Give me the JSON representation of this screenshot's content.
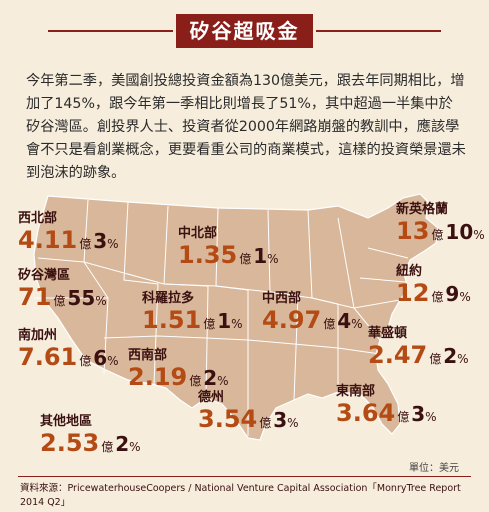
{
  "title": "矽谷超吸金",
  "intro": "今年第二季，美國創投總投資金額為130億美元，跟去年同期相比，增加了145%，跟今年第一季相比則增長了51%，其中超過一半集中於矽谷灣區。創投界人士、投資者從2000年網路崩盤的教訓中，應該學會不只是看創業概念，更要看重公司的商業模式，這樣的投資榮景還未到泡沫的跡象。",
  "unit_word": "億",
  "pct_sign": "%",
  "regions": [
    {
      "name": "西北部",
      "value": "4.11",
      "pct": "3"
    },
    {
      "name": "中北部",
      "value": "1.35",
      "pct": "1"
    },
    {
      "name": "新英格蘭",
      "value": "13",
      "pct": "10"
    },
    {
      "name": "矽谷灣區",
      "value": "71",
      "pct": "55"
    },
    {
      "name": "科羅拉多",
      "value": "1.51",
      "pct": "1"
    },
    {
      "name": "中西部",
      "value": "4.97",
      "pct": "4"
    },
    {
      "name": "紐約",
      "value": "12",
      "pct": "9"
    },
    {
      "name": "南加州",
      "value": "7.61",
      "pct": "6"
    },
    {
      "name": "西南部",
      "value": "2.19",
      "pct": "2"
    },
    {
      "name": "華盛頓",
      "value": "2.47",
      "pct": "2"
    },
    {
      "name": "德州",
      "value": "3.54",
      "pct": "3"
    },
    {
      "name": "東南部",
      "value": "3.64",
      "pct": "3"
    },
    {
      "name": "其他地區",
      "value": "2.53",
      "pct": "2"
    }
  ],
  "unit_note": "單位：美元",
  "source": "資料來源：PricewaterhouseCoopers / National Venture Capital Association「MonryTree Report 2014 Q2」",
  "colors": {
    "brand": "#8a1f1a",
    "value": "#b44a14",
    "map": "#d8b79a",
    "map_line": "#ffffff",
    "background": "#f6eddc"
  }
}
